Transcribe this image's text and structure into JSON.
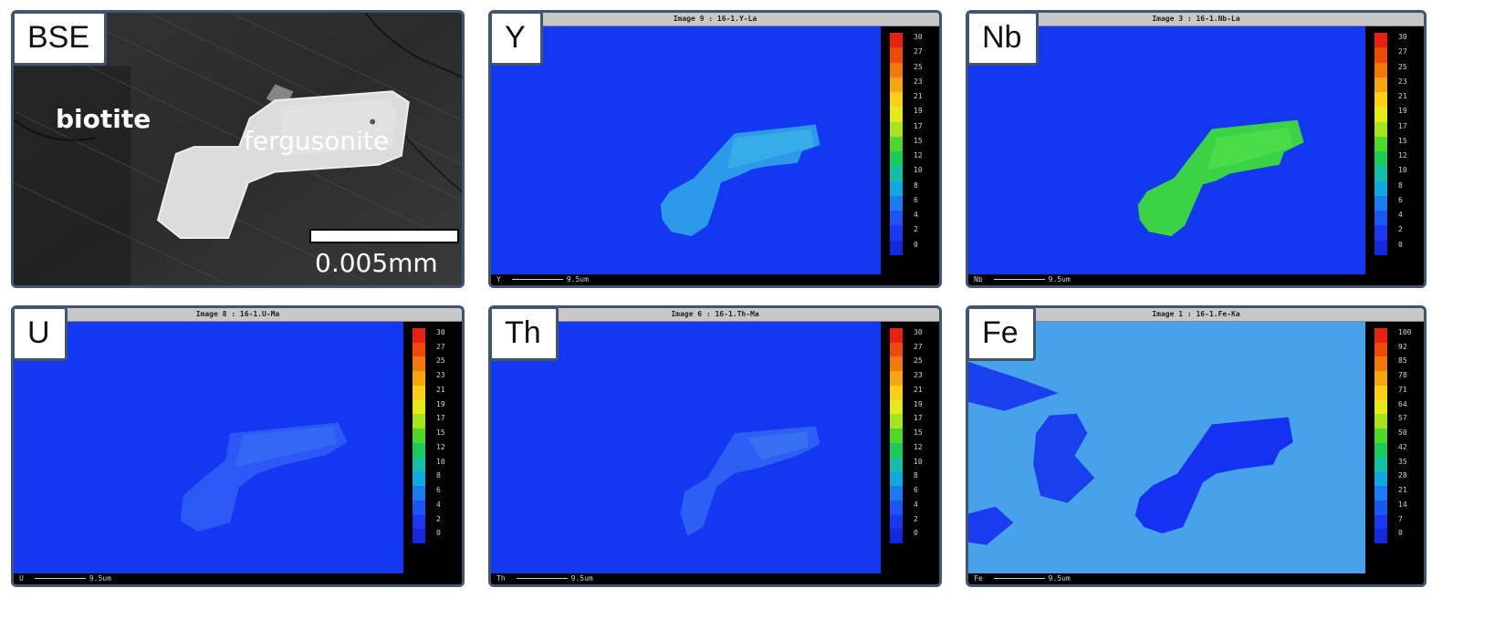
{
  "bse": {
    "label": "BSE",
    "mineral_1": "biotite",
    "mineral_2": "fergusonite",
    "scale_label": "0.005mm"
  },
  "maps": [
    {
      "label": "Y",
      "title": "Image 9 : 16-1.Y-La",
      "footer_element": "Y",
      "footer_scale": "9.5um",
      "ticks": [
        "30",
        "27",
        "25",
        "23",
        "21",
        "19",
        "17",
        "15",
        "12",
        "10",
        "8",
        "6",
        "4",
        "2",
        "0"
      ]
    },
    {
      "label": "Nb",
      "title": "Image 3 : 16-1.Nb-La",
      "footer_element": "Nb",
      "footer_scale": "9.5um",
      "ticks": [
        "30",
        "27",
        "25",
        "23",
        "21",
        "19",
        "17",
        "15",
        "12",
        "10",
        "8",
        "6",
        "4",
        "2",
        "0"
      ]
    },
    {
      "label": "U",
      "title": "Image 8 : 16-1.U-Ma",
      "footer_element": "U",
      "footer_scale": "9.5um",
      "ticks": [
        "30",
        "27",
        "25",
        "23",
        "21",
        "19",
        "17",
        "15",
        "12",
        "10",
        "8",
        "6",
        "4",
        "2",
        "0"
      ]
    },
    {
      "label": "Th",
      "title": "Image 6 : 16-1.Th-Ma",
      "footer_element": "Th",
      "footer_scale": "9.5um",
      "ticks": [
        "30",
        "27",
        "25",
        "23",
        "21",
        "19",
        "17",
        "15",
        "12",
        "10",
        "8",
        "6",
        "4",
        "2",
        "0"
      ]
    },
    {
      "label": "Fe",
      "title": "Image 1 : 16-1.Fe-Ka",
      "footer_element": "Fe",
      "footer_scale": "9.5um",
      "ticks": [
        "100",
        "92",
        "85",
        "78",
        "71",
        "64",
        "57",
        "50",
        "42",
        "35",
        "28",
        "21",
        "14",
        "7",
        "0"
      ]
    }
  ],
  "colors": {
    "map_background": "#1437f2",
    "panel_border": "#3f5572",
    "colorbar_scale": [
      "#e82010",
      "#f04a0a",
      "#f5780a",
      "#f9a50e",
      "#fbcf12",
      "#e4ea14",
      "#a7e41a",
      "#4ed82a",
      "#1acb5a",
      "#12c0a8",
      "#10a8e0",
      "#1a7cf0",
      "#1a55f5",
      "#1a38f2",
      "#1428e0"
    ]
  }
}
